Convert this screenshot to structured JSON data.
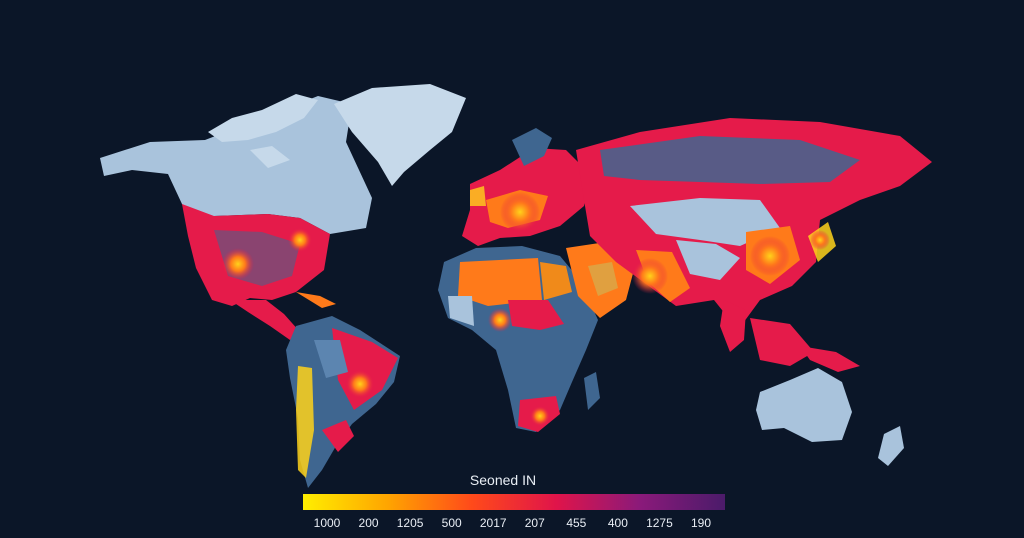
{
  "legend": {
    "title": "Seoned IN",
    "tick_labels": [
      "1000",
      "200",
      "1205",
      "500",
      "2017",
      "207",
      "455",
      "400",
      "1275",
      "190"
    ],
    "gradient_colors": [
      "#ffee00",
      "#ffa500",
      "#ff4a1a",
      "#e0144a",
      "#8a1a7a",
      "#4b1b6a"
    ]
  },
  "colors": {
    "background": "#0b1628",
    "low_density": "#a9c3dc",
    "mid_density": "#3f6690",
    "high_density": "#e51b4a",
    "hotspot": "#ff7a1a",
    "peak": "#ffd21a"
  }
}
